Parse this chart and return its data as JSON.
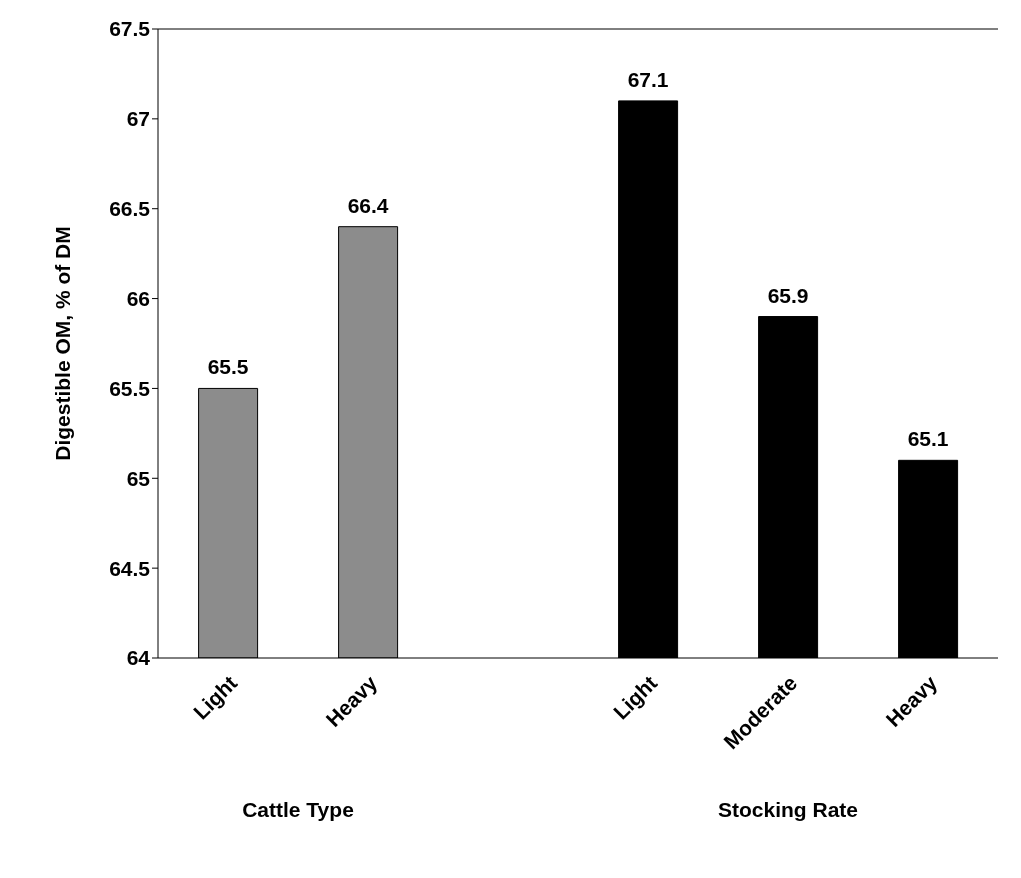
{
  "chart_data": {
    "type": "bar",
    "ylabel": "Digestible OM, % of DM",
    "categories": [
      "Light",
      "Heavy",
      null,
      "Light",
      "Moderate",
      "Heavy"
    ],
    "values": [
      65.5,
      66.4,
      null,
      67.1,
      65.9,
      65.1
    ],
    "colors": [
      "#8c8c8c",
      "#8c8c8c",
      "#000000",
      "#000000",
      "#000000",
      "#000000"
    ],
    "ylim": [
      64,
      67.5
    ],
    "yticks": [
      64,
      64.5,
      65,
      65.5,
      66,
      66.5,
      67,
      67.5
    ],
    "data_labels": true,
    "annotations": [
      "Cattle Type",
      "Stocking Rate"
    ]
  }
}
